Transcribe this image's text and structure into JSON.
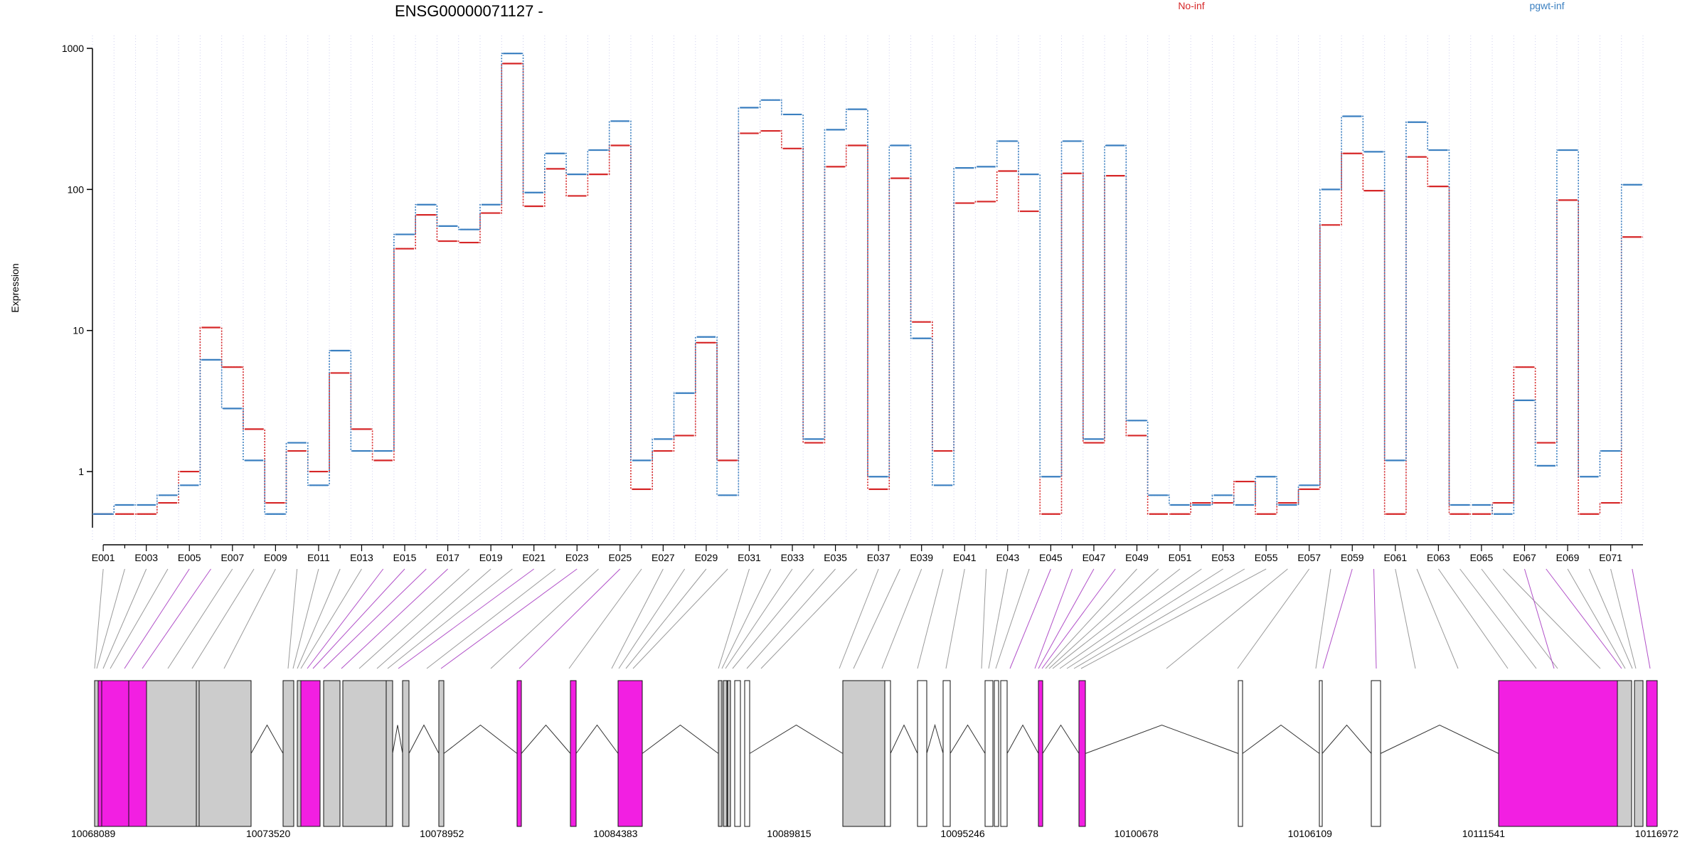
{
  "chart_data": {
    "type": "line",
    "title": "ENSG00000071127 -",
    "ylabel": "Expression",
    "xlabel": "",
    "yscale": "log",
    "ylim": [
      0.4,
      1000
    ],
    "yticks": [
      "1",
      "10",
      "100",
      "1000"
    ],
    "legend_placement": "top",
    "grid": "vertical dotted lines at each exon",
    "categories": [
      "E001",
      "E002",
      "E003",
      "E004",
      "E005",
      "E006",
      "E007",
      "E008",
      "E009",
      "E010",
      "E011",
      "E012",
      "E013",
      "E014",
      "E015",
      "E016",
      "E017",
      "E018",
      "E019",
      "E020",
      "E021",
      "E022",
      "E023",
      "E024",
      "E025",
      "E026",
      "E027",
      "E028",
      "E029",
      "E030",
      "E031",
      "E032",
      "E033",
      "E034",
      "E035",
      "E036",
      "E037",
      "E038",
      "E039",
      "E040",
      "E041",
      "E042",
      "E043",
      "E044",
      "E045",
      "E046",
      "E047",
      "E048",
      "E049",
      "E050",
      "E051",
      "E052",
      "E053",
      "E054",
      "E055",
      "E056",
      "E057",
      "E058",
      "E059",
      "E060",
      "E061",
      "E062",
      "E063",
      "E064",
      "E065",
      "E066",
      "E067",
      "E068",
      "E069",
      "E070",
      "E071",
      "E072"
    ],
    "x_tick_labels": [
      "E001",
      "E003",
      "E005",
      "E007",
      "E009",
      "E011",
      "E013",
      "E015",
      "E017",
      "E019",
      "E021",
      "E023",
      "E025",
      "E027",
      "E029",
      "E031",
      "E033",
      "E035",
      "E037",
      "E039",
      "E041",
      "E043",
      "E045",
      "E047",
      "E049",
      "E051",
      "E053",
      "E055",
      "E057",
      "E059",
      "E061",
      "E063",
      "E065",
      "E067",
      "E069",
      "E071"
    ],
    "series": [
      {
        "name": "No-inf",
        "color": "#d62728",
        "values": [
          0.5,
          0.5,
          0.5,
          0.6,
          1.0,
          10.5,
          5.5,
          2.0,
          0.6,
          1.4,
          1.0,
          5.0,
          2.0,
          1.2,
          38,
          66,
          43,
          42,
          68,
          780,
          76,
          140,
          90,
          128,
          205,
          0.75,
          1.4,
          1.8,
          8.2,
          1.2,
          250,
          260,
          195,
          1.6,
          145,
          205,
          0.75,
          120,
          11.5,
          1.4,
          80,
          82,
          135,
          70,
          0.5,
          130,
          1.6,
          125,
          1.8,
          0.5,
          0.5,
          0.6,
          0.6,
          0.85,
          0.5,
          0.6,
          0.75,
          56,
          180,
          98,
          0.5,
          170,
          105,
          0.5,
          0.5,
          0.6,
          5.5,
          1.6,
          84,
          0.5,
          0.6,
          46
        ]
      },
      {
        "name": "pgwt-inf",
        "color": "#3a7fc0",
        "values": [
          0.5,
          0.58,
          0.58,
          0.68,
          0.8,
          6.2,
          2.8,
          1.2,
          0.5,
          1.6,
          0.8,
          7.2,
          1.4,
          1.4,
          48,
          78,
          55,
          52,
          78,
          920,
          95,
          180,
          128,
          190,
          305,
          1.2,
          1.7,
          3.6,
          9.0,
          0.68,
          380,
          430,
          340,
          1.7,
          265,
          370,
          0.92,
          205,
          8.8,
          0.8,
          142,
          145,
          220,
          128,
          0.92,
          220,
          1.7,
          205,
          2.3,
          0.68,
          0.58,
          0.58,
          0.68,
          0.58,
          0.92,
          0.58,
          0.8,
          100,
          330,
          185,
          1.2,
          300,
          190,
          0.58,
          0.58,
          0.5,
          3.2,
          1.1,
          190,
          0.92,
          1.4,
          108
        ]
      }
    ],
    "gene_model": {
      "coordinate_labels": [
        "10068089",
        "10073520",
        "10078952",
        "10084383",
        "10089815",
        "10095246",
        "10100678",
        "10106109",
        "10111541",
        "10116972"
      ],
      "colors": {
        "exon": "#cccccc",
        "highlight": "#f21fe2",
        "unexpressed": "#ffffff",
        "connector_gray": "#9a9a9a",
        "connector_magenta": "#b150c8"
      },
      "highlighted_exons": [
        "E005",
        "E006",
        "E014",
        "E015",
        "E016",
        "E017",
        "E021",
        "E023",
        "E025",
        "E045",
        "E046",
        "E047",
        "E048",
        "E059",
        "E060",
        "E067",
        "E068",
        "E072"
      ]
    }
  }
}
